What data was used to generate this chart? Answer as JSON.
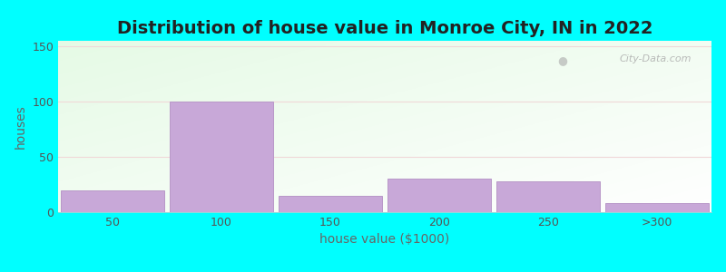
{
  "title": "Distribution of house value in Monroe City, IN in 2022",
  "xlabel": "house value ($1000)",
  "ylabel": "houses",
  "bar_labels": [
    "50",
    "100",
    "150",
    "200",
    "250",
    ">300"
  ],
  "bar_values": [
    20,
    100,
    15,
    30,
    28,
    8
  ],
  "bar_color": "#c8a8d8",
  "bar_edgecolor": "#b898c8",
  "bar_width": 0.95,
  "ylim": [
    0,
    155
  ],
  "yticks": [
    0,
    50,
    100,
    150
  ],
  "background_outer": "#00FFFF",
  "title_fontsize": 14,
  "label_fontsize": 10,
  "tick_fontsize": 9,
  "watermark_text": "City-Data.com"
}
